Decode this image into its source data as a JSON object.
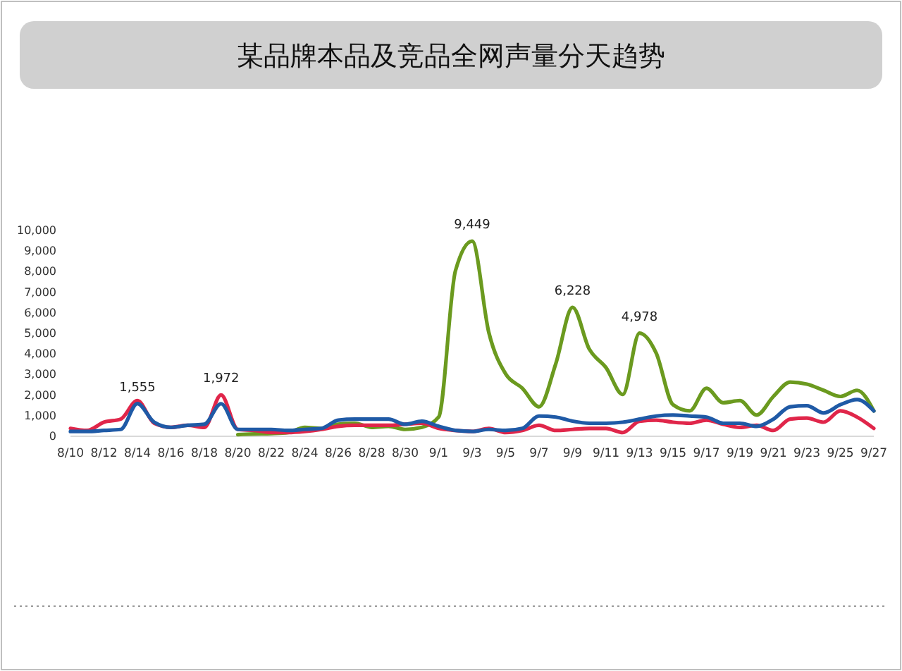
{
  "chart_data": {
    "type": "line",
    "title": "某品牌本品及竞品全网声量分天趋势",
    "x": [
      "--08-10",
      "--08-11",
      "--08-12",
      "--08-13",
      "--08-14",
      "--08-15",
      "--08-16",
      "--08-17",
      "--08-18",
      "--08-19",
      "--08-20",
      "--08-21",
      "--08-22",
      "--08-23",
      "--08-24",
      "--08-25",
      "--08-26",
      "--08-27",
      "--08-28",
      "--08-29",
      "--08-30",
      "--08-31",
      "--09-01",
      "--09-02",
      "--09-03",
      "--09-04",
      "--09-05",
      "--09-06",
      "--09-07",
      "--09-08",
      "--09-09",
      "--09-10",
      "--09-11",
      "--09-12",
      "--09-13",
      "--09-14",
      "--09-15",
      "--09-16",
      "--09-17",
      "--09-18",
      "--09-19",
      "--09-20",
      "--09-21",
      "--09-22",
      "--09-23",
      "--09-24",
      "--09-25",
      "--09-26",
      "--09-27"
    ],
    "series": [
      {
        "color": "#6b9a1f",
        "values": [
          null,
          null,
          null,
          null,
          null,
          null,
          null,
          null,
          null,
          null,
          50,
          80,
          100,
          150,
          400,
          350,
          550,
          600,
          400,
          450,
          300,
          400,
          900,
          8000,
          9449,
          5000,
          3000,
          2300,
          1400,
          3500,
          6228,
          4200,
          3300,
          2000,
          4978,
          4000,
          1500,
          1200,
          2300,
          1600,
          1700,
          1000,
          1900,
          2600,
          2500,
          2200,
          1900,
          2200,
          1200
        ],
        "value_labels": [
          null,
          null,
          null,
          null,
          null,
          null,
          null,
          null,
          null,
          null,
          null,
          null,
          null,
          null,
          null,
          null,
          null,
          null,
          null,
          null,
          null,
          null,
          null,
          null,
          "9,449",
          null,
          null,
          null,
          null,
          null,
          "6,228",
          null,
          null,
          null,
          "4,978",
          null,
          null,
          null,
          null,
          null,
          null,
          null,
          null,
          null,
          null,
          null,
          null,
          null,
          null
        ]
      },
      {
        "color": "#e0264a",
        "values": [
          350,
          250,
          650,
          800,
          1700,
          600,
          400,
          500,
          400,
          1972,
          300,
          250,
          150,
          150,
          200,
          300,
          450,
          500,
          500,
          500,
          550,
          600,
          350,
          250,
          200,
          350,
          150,
          250,
          500,
          250,
          300,
          350,
          350,
          150,
          700,
          750,
          650,
          600,
          750,
          550,
          400,
          500,
          250,
          800,
          850,
          650,
          1200,
          900,
          350
        ],
        "value_labels": [
          null,
          null,
          null,
          null,
          null,
          null,
          null,
          null,
          null,
          "1,972",
          null,
          null,
          null,
          null,
          null,
          null,
          null,
          null,
          null,
          null,
          null,
          null,
          null,
          null,
          null,
          null,
          null,
          null,
          null,
          null,
          null,
          null,
          null,
          null,
          null,
          null,
          null,
          null,
          null,
          null,
          null,
          null,
          null,
          null,
          null,
          null,
          null,
          null,
          null
        ]
      },
      {
        "color": "#1f5aa6",
        "values": [
          200,
          200,
          250,
          300,
          1555,
          650,
          400,
          500,
          550,
          1550,
          300,
          300,
          300,
          250,
          300,
          350,
          750,
          800,
          800,
          800,
          550,
          700,
          450,
          250,
          200,
          300,
          250,
          350,
          950,
          900,
          700,
          600,
          600,
          650,
          800,
          950,
          1000,
          950,
          900,
          600,
          600,
          450,
          800,
          1400,
          1450,
          1100,
          1500,
          1750,
          1200
        ],
        "value_labels": [
          null,
          null,
          null,
          null,
          "1,555",
          null,
          null,
          null,
          null,
          null,
          null,
          null,
          null,
          null,
          null,
          null,
          null,
          null,
          null,
          null,
          null,
          null,
          null,
          null,
          null,
          null,
          null,
          null,
          null,
          null,
          null,
          null,
          null,
          null,
          null,
          null,
          null,
          null,
          null,
          null,
          null,
          null,
          null,
          null,
          null,
          null,
          null,
          null,
          null
        ]
      }
    ],
    "xlim": [
      "--08-10",
      "--09-27"
    ],
    "xticks": [
      {
        "value": "--08-10",
        "label": "8/10"
      },
      {
        "value": "--08-12",
        "label": "8/12"
      },
      {
        "value": "--08-14",
        "label": "8/14"
      },
      {
        "value": "--08-16",
        "label": "8/16"
      },
      {
        "value": "--08-18",
        "label": "8/18"
      },
      {
        "value": "--08-20",
        "label": "8/20"
      },
      {
        "value": "--08-22",
        "label": "8/22"
      },
      {
        "value": "--08-24",
        "label": "8/24"
      },
      {
        "value": "--08-26",
        "label": "8/26"
      },
      {
        "value": "--08-28",
        "label": "8/28"
      },
      {
        "value": "--08-30",
        "label": "8/30"
      },
      {
        "value": "--09-01",
        "label": "9/1"
      },
      {
        "value": "--09-03",
        "label": "9/3"
      },
      {
        "value": "--09-05",
        "label": "9/5"
      },
      {
        "value": "--09-07",
        "label": "9/7"
      },
      {
        "value": "--09-09",
        "label": "9/9"
      },
      {
        "value": "--09-11",
        "label": "9/11"
      },
      {
        "value": "--09-13",
        "label": "9/13"
      },
      {
        "value": "--09-15",
        "label": "9/15"
      },
      {
        "value": "--09-17",
        "label": "9/17"
      },
      {
        "value": "--09-19",
        "label": "9/19"
      },
      {
        "value": "--09-21",
        "label": "9/21"
      },
      {
        "value": "--09-23",
        "label": "9/23"
      },
      {
        "value": "--09-25",
        "label": "9/25"
      },
      {
        "value": "--09-27",
        "label": "9/27"
      }
    ],
    "ylim": [
      0,
      10000
    ],
    "yticks": [
      {
        "value": 0,
        "label": "0"
      },
      {
        "value": 1000,
        "label": "1,000"
      },
      {
        "value": 2000,
        "label": "2,000"
      },
      {
        "value": 3000,
        "label": "3,000"
      },
      {
        "value": 4000,
        "label": "4,000"
      },
      {
        "value": 5000,
        "label": "5,000"
      },
      {
        "value": 6000,
        "label": "6,000"
      },
      {
        "value": 7000,
        "label": "7,000"
      },
      {
        "value": 8000,
        "label": "8,000"
      },
      {
        "value": 9000,
        "label": "9,000"
      },
      {
        "value": 10000,
        "label": "10,000"
      }
    ],
    "grid": false,
    "marker": "none",
    "line_style": "solid"
  }
}
